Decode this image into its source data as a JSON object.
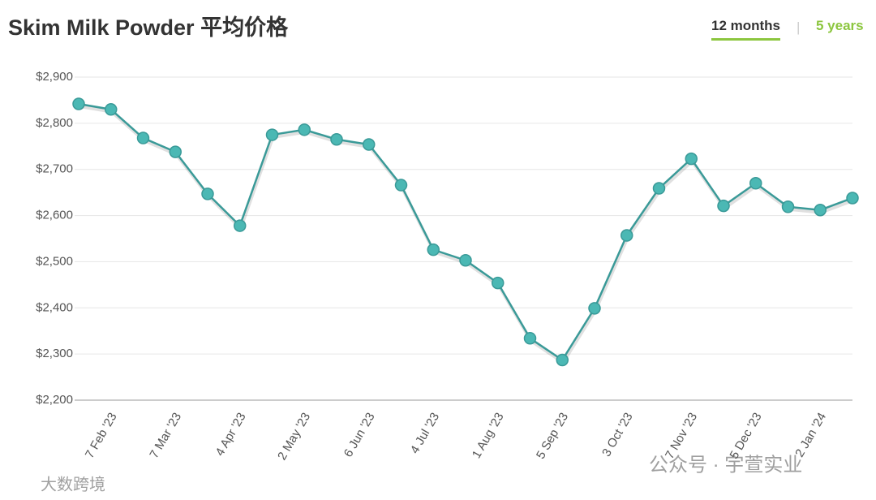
{
  "chart_data": {
    "type": "line",
    "title": "Skim Milk Powder 平均价格",
    "tabs": [
      "12 months",
      "5 years"
    ],
    "categories": [
      null,
      "7 Feb '23",
      null,
      "7 Mar '23",
      null,
      "4 Apr '23",
      null,
      "2 May '23",
      null,
      "6 Jun '23",
      null,
      "4 Jul '23",
      null,
      "1 Aug '23",
      null,
      "5 Sep '23",
      null,
      "3 Oct '23",
      null,
      "7 Nov '23",
      null,
      "5 Dec '23",
      null,
      "2 Jan '24",
      null
    ],
    "series": [
      {
        "name": "Skim Milk Powder",
        "color": "#3a9a98",
        "values": [
          2842,
          2830,
          2768,
          2738,
          2647,
          2578,
          2775,
          2786,
          2765,
          2754,
          2666,
          2526,
          2503,
          2454,
          2334,
          2287,
          2399,
          2557,
          2659,
          2723,
          2621,
          2670,
          2619,
          2612,
          2638
        ]
      }
    ],
    "ylim": [
      2200,
      2900
    ],
    "yticks": [
      {
        "value": 2200,
        "label": "$2,200"
      },
      {
        "value": 2300,
        "label": "$2,300"
      },
      {
        "value": 2400,
        "label": "$2,400"
      },
      {
        "value": 2500,
        "label": "$2,500"
      },
      {
        "value": 2600,
        "label": "$2,600"
      },
      {
        "value": 2700,
        "label": "$2,700"
      },
      {
        "value": 2800,
        "label": "$2,800"
      },
      {
        "value": 2900,
        "label": "$2,900"
      }
    ],
    "grid": true,
    "watermarks": [
      "公众号 · 宇萱实业",
      "大数跨境"
    ]
  }
}
